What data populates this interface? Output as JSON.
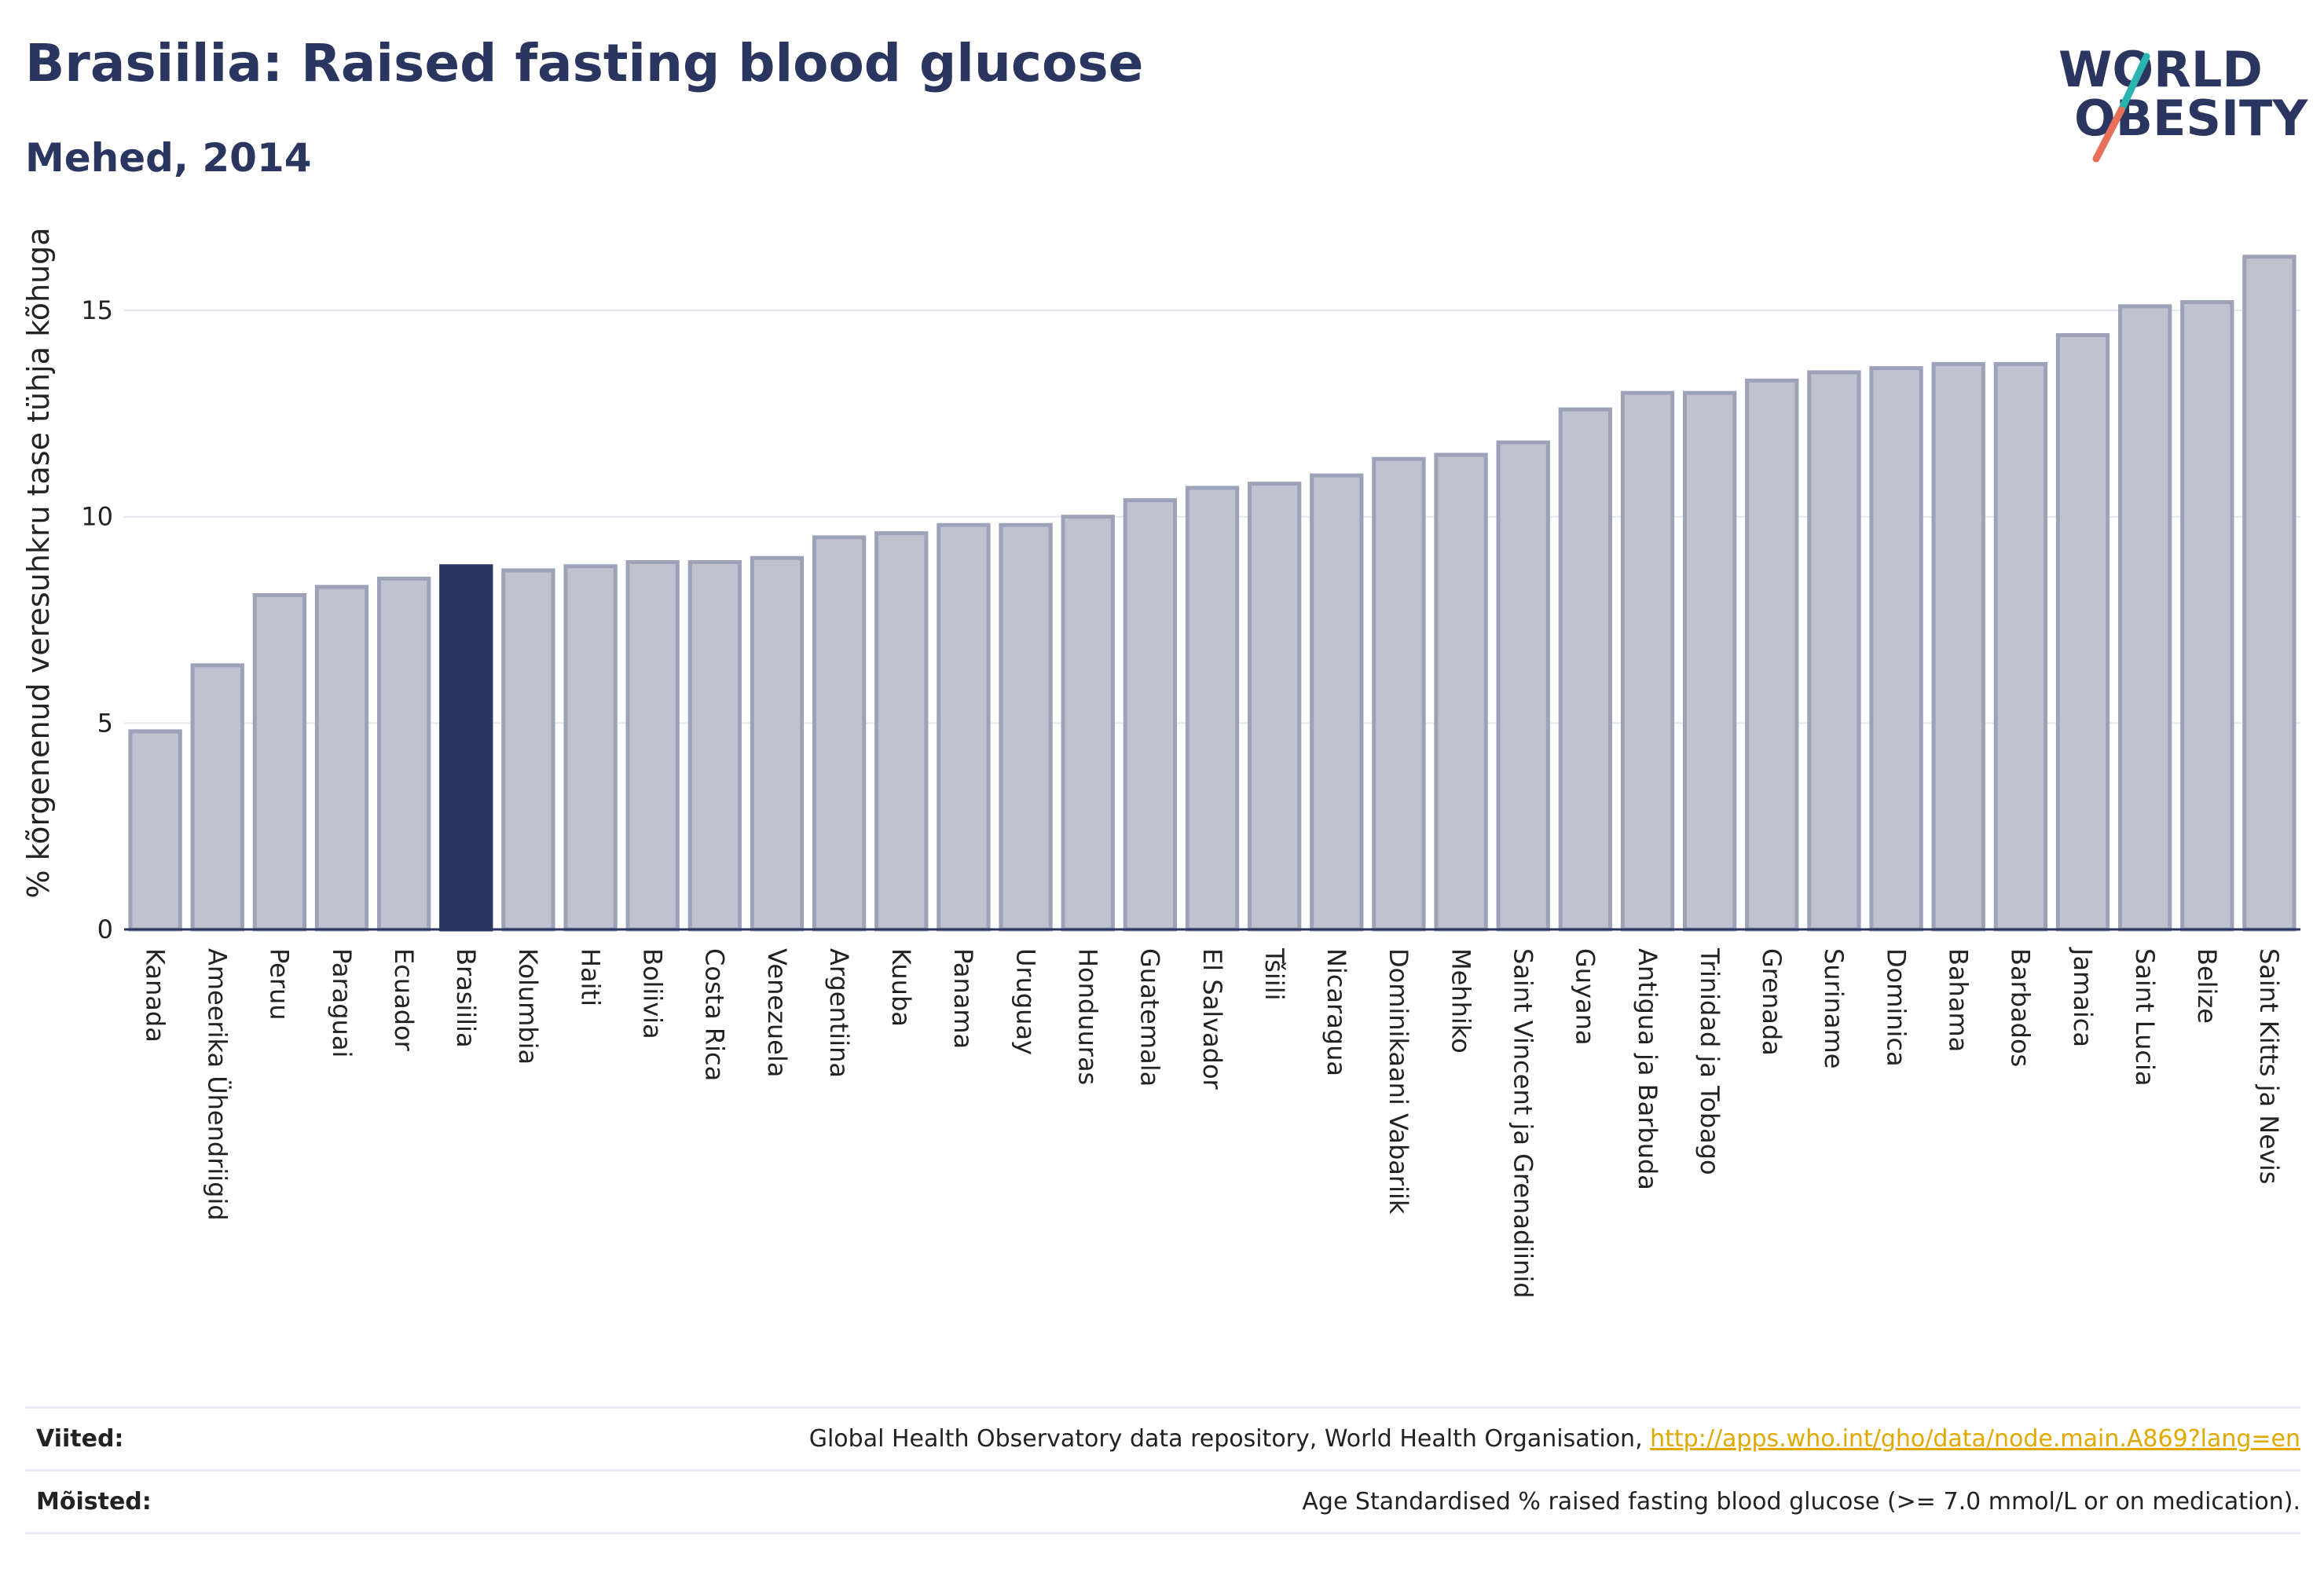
{
  "header": {
    "title": "Brasiilia: Raised fasting blood glucose",
    "subtitle": "Mehed, 2014"
  },
  "logo": {
    "line1": "WORLD",
    "line2": "OBESITY",
    "colors": {
      "text": "#2a3560",
      "slash_teal": "#2bb5b0",
      "slash_coral": "#e8705a"
    }
  },
  "chart_data": {
    "type": "bar",
    "title": "Brasiilia: Raised fasting blood glucose",
    "subtitle": "Mehed, 2014",
    "xlabel": "",
    "ylabel": "% kõrgenenud veresuhkru tase tühja kõhuga",
    "ylim": [
      0,
      17
    ],
    "yticks": [
      0,
      5,
      10,
      15
    ],
    "grid": true,
    "highlight": "Brasiilia",
    "colors": {
      "bar": "#bfc3d0",
      "bar_stroke": "#9ca2b8",
      "highlight": "#2a3560"
    },
    "categories": [
      "Kanada",
      "Ameerika Ühendriigid",
      "Peruu",
      "Paraguai",
      "Ecuador",
      "Brasiilia",
      "Kolumbia",
      "Haiti",
      "Boliivia",
      "Costa Rica",
      "Venezuela",
      "Argentiina",
      "Kuuba",
      "Panama",
      "Uruguay",
      "Honduuras",
      "Guatemala",
      "El Salvador",
      "Tšiili",
      "Nicaragua",
      "Dominikaani Vabariik",
      "Mehhiko",
      "Saint Vincent ja Grenadiinid",
      "Guyana",
      "Antigua ja Barbuda",
      "Trinidad ja Tobago",
      "Grenada",
      "Suriname",
      "Dominica",
      "Bahama",
      "Barbados",
      "Jamaica",
      "Saint Lucia",
      "Belize",
      "Saint Kitts ja Nevis"
    ],
    "values": [
      4.8,
      6.4,
      8.1,
      8.3,
      8.5,
      8.8,
      8.7,
      8.8,
      8.9,
      8.9,
      9.0,
      9.5,
      9.6,
      9.8,
      9.8,
      10.0,
      10.4,
      10.7,
      10.8,
      11.0,
      11.4,
      11.5,
      11.8,
      12.6,
      13.0,
      13.0,
      13.3,
      13.5,
      13.6,
      13.7,
      13.7,
      14.4,
      15.1,
      15.2,
      16.3
    ]
  },
  "footer": {
    "sources_label": "Viited:",
    "sources_text": "Global Health Observatory data repository, World Health Organisation, ",
    "sources_link": "http://apps.who.int/gho/data/node.main.A869?lang=en",
    "definitions_label": "Mõisted:",
    "definitions_text": "Age Standardised % raised fasting blood glucose (>= 7.0 mmol/L or on medication)."
  }
}
